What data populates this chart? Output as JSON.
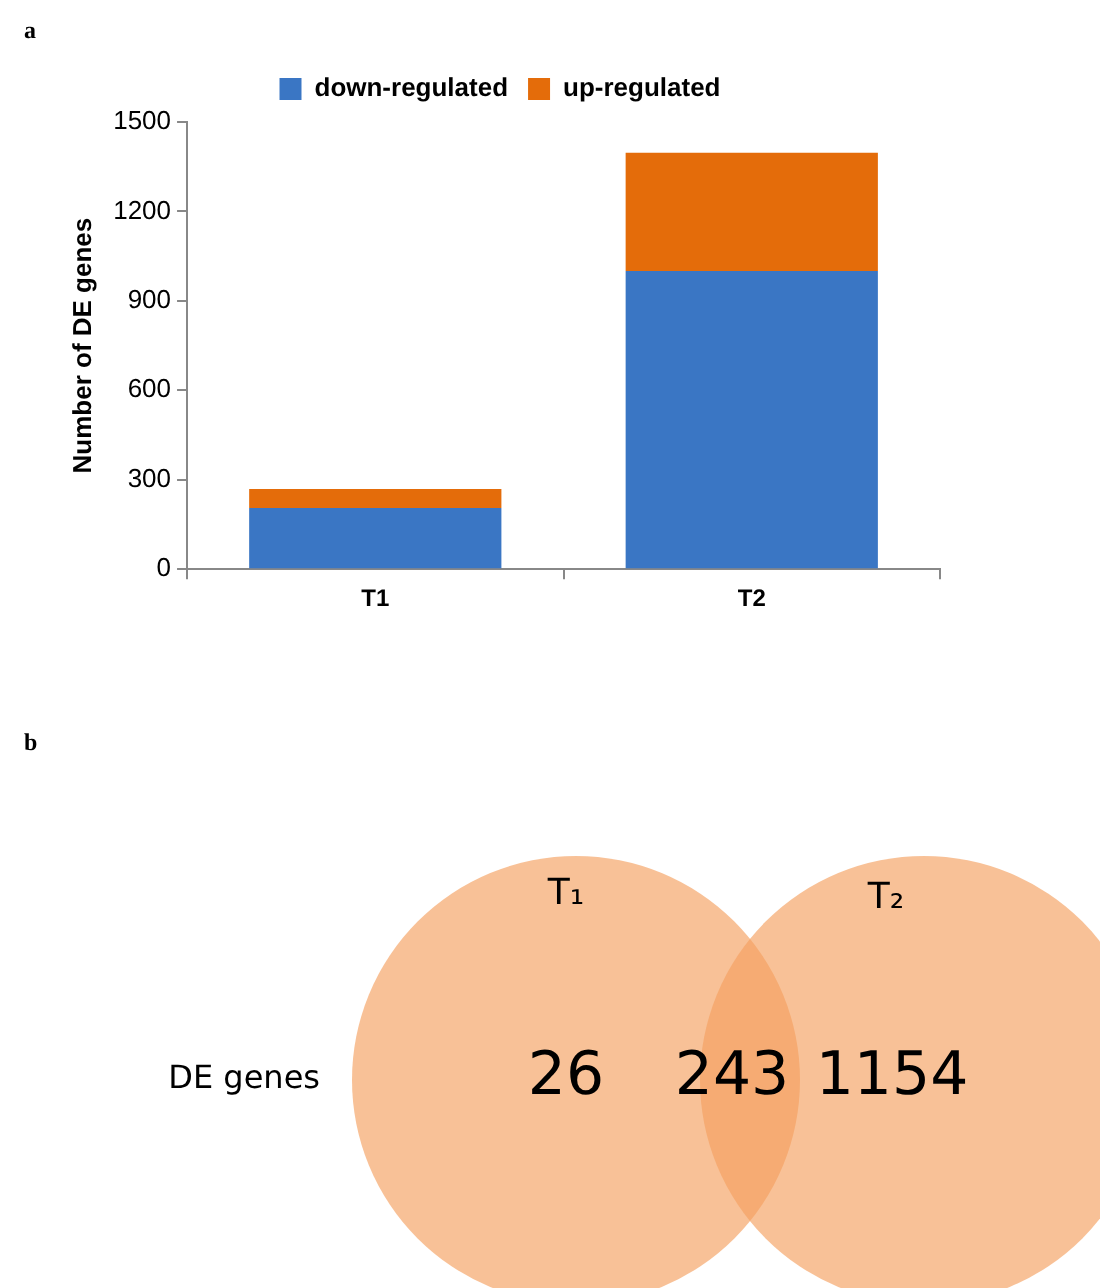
{
  "chart_data": [
    {
      "type": "bar",
      "title": "a",
      "categories": [
        "T1",
        "T2"
      ],
      "stacked": true,
      "ylabel": "Number of DE genes",
      "ylim": [
        0,
        1500
      ],
      "yticks": [
        0,
        300,
        600,
        900,
        1200,
        1500
      ],
      "grid": false,
      "legend": "top",
      "series": [
        {
          "name": "down-regulated",
          "color": "#3a76c4",
          "values": [
            205,
            1000
          ]
        },
        {
          "name": "up-regulated",
          "color": "#e46c0a",
          "values": [
            64,
            397
          ]
        }
      ]
    },
    {
      "type": "other",
      "title": "b",
      "categories": [
        "T₁",
        null,
        "T₂"
      ],
      "values": [
        26,
        243,
        1154
      ],
      "data_labels": true,
      "ylabel": "DE genes",
      "color": "#f5a060"
    }
  ]
}
